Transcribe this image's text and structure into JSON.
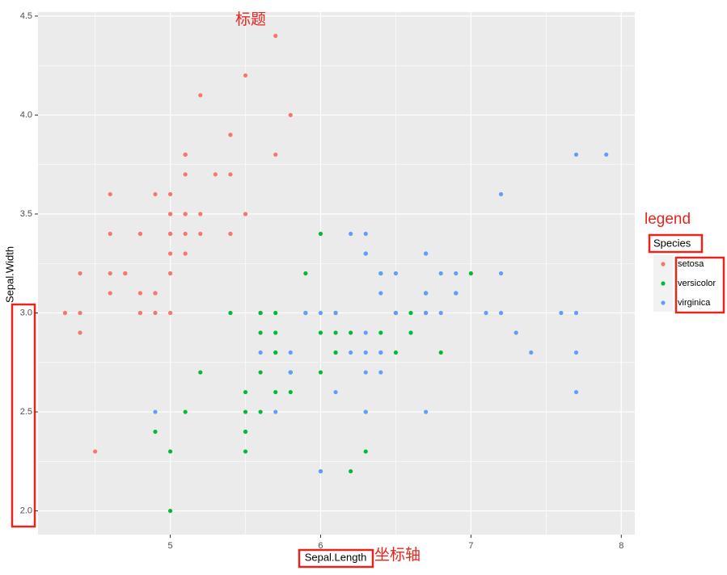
{
  "chart_data": {
    "type": "scatter",
    "x_label": "Sepal.Length",
    "y_label": "Sepal.Width",
    "legend_title": "Species",
    "legend_position": "right",
    "annotations": [
      "标题",
      "坐标轴",
      "legend"
    ],
    "xlim": [
      4.12,
      8.09
    ],
    "ylim": [
      1.88,
      4.52
    ],
    "xticks": [
      5,
      6,
      7,
      8
    ],
    "yticks": [
      {
        "value": 2,
        "label": "2.0"
      },
      2.5,
      {
        "value": 3,
        "label": "3.0"
      },
      3.5,
      {
        "value": 4,
        "label": "4.0"
      },
      4.5
    ],
    "xminorticks": [
      4.5,
      5.5,
      6.5,
      7.5
    ],
    "yminorticks": [
      2.25,
      2.75,
      3.25,
      3.75,
      4.25
    ],
    "grid": true,
    "series": [
      {
        "name": "setosa",
        "color": "#F8766D",
        "x": [
          5.1,
          4.9,
          4.7,
          4.6,
          5.0,
          5.4,
          4.6,
          5.0,
          4.4,
          4.9,
          5.4,
          4.8,
          4.8,
          4.3,
          5.8,
          5.7,
          5.4,
          5.1,
          5.7,
          5.1,
          5.4,
          5.1,
          4.6,
          5.1,
          4.8,
          5.0,
          5.0,
          5.2,
          5.2,
          4.7,
          4.8,
          5.4,
          5.2,
          5.5,
          4.9,
          5.0,
          5.5,
          4.9,
          4.4,
          5.1,
          5.0,
          4.5,
          4.4,
          5.0,
          5.1,
          4.8,
          5.1,
          4.6,
          5.3,
          5.0
        ],
        "values": [
          3.5,
          3.0,
          3.2,
          3.1,
          3.6,
          3.9,
          3.4,
          3.4,
          2.9,
          3.1,
          3.7,
          3.4,
          3.0,
          3.0,
          4.0,
          4.4,
          3.9,
          3.5,
          3.8,
          3.8,
          3.4,
          3.7,
          3.6,
          3.3,
          3.4,
          3.0,
          3.4,
          3.5,
          3.4,
          3.2,
          3.1,
          3.4,
          4.1,
          4.2,
          3.1,
          3.2,
          3.5,
          3.6,
          3.0,
          3.4,
          3.5,
          2.3,
          3.2,
          3.5,
          3.8,
          3.0,
          3.8,
          3.2,
          3.7,
          3.3
        ]
      },
      {
        "name": "versicolor",
        "color": "#00BA38",
        "x": [
          7.0,
          6.4,
          6.9,
          5.5,
          6.5,
          5.7,
          6.3,
          4.9,
          6.6,
          5.2,
          5.0,
          5.9,
          6.0,
          6.1,
          5.6,
          6.7,
          5.6,
          5.8,
          6.2,
          5.6,
          5.9,
          6.1,
          6.3,
          6.1,
          6.4,
          6.6,
          6.8,
          6.7,
          6.0,
          5.7,
          5.5,
          5.5,
          5.8,
          6.0,
          5.4,
          6.0,
          6.7,
          6.3,
          5.6,
          5.5,
          5.5,
          6.1,
          5.8,
          5.0,
          5.6,
          5.7,
          5.7,
          6.2,
          5.1,
          5.7
        ],
        "values": [
          3.2,
          3.2,
          3.1,
          2.3,
          2.8,
          2.8,
          3.3,
          2.4,
          2.9,
          2.7,
          2.0,
          3.0,
          2.2,
          2.9,
          2.9,
          3.1,
          3.0,
          2.7,
          2.2,
          2.5,
          3.2,
          2.8,
          2.5,
          2.8,
          2.9,
          3.0,
          2.8,
          3.0,
          2.9,
          2.6,
          2.4,
          2.4,
          2.7,
          2.7,
          3.0,
          3.4,
          3.1,
          2.3,
          3.0,
          2.5,
          2.6,
          3.0,
          2.6,
          2.3,
          2.7,
          3.0,
          2.9,
          2.9,
          2.5,
          2.8
        ]
      },
      {
        "name": "virginica",
        "color": "#619CFF",
        "x": [
          6.3,
          5.8,
          7.1,
          6.3,
          6.5,
          7.6,
          4.9,
          7.3,
          6.7,
          7.2,
          6.5,
          6.4,
          6.8,
          5.7,
          5.8,
          6.4,
          6.5,
          7.7,
          7.7,
          6.0,
          6.9,
          5.6,
          7.7,
          6.3,
          6.7,
          7.2,
          6.2,
          6.1,
          6.4,
          7.2,
          7.4,
          7.9,
          6.4,
          6.3,
          6.1,
          7.7,
          6.3,
          6.4,
          6.0,
          6.9,
          6.7,
          6.9,
          5.8,
          6.8,
          6.7,
          6.7,
          6.3,
          6.5,
          6.2,
          5.9
        ],
        "values": [
          3.3,
          2.7,
          3.0,
          2.9,
          3.0,
          3.0,
          2.5,
          2.9,
          2.5,
          3.6,
          3.2,
          2.7,
          3.0,
          2.5,
          2.8,
          3.2,
          3.0,
          3.8,
          2.6,
          2.2,
          3.2,
          2.8,
          2.8,
          2.7,
          3.3,
          3.2,
          2.8,
          3.0,
          2.8,
          3.0,
          2.8,
          3.8,
          2.8,
          2.8,
          2.6,
          3.0,
          3.4,
          3.1,
          3.0,
          3.1,
          3.1,
          3.1,
          2.7,
          3.2,
          3.3,
          3.0,
          2.5,
          3.0,
          3.4,
          3.0
        ]
      }
    ]
  }
}
